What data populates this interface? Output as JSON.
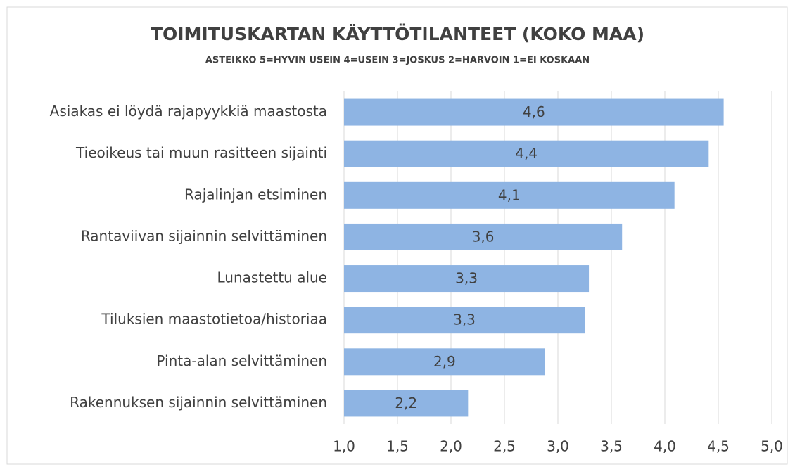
{
  "chart_data": {
    "type": "hbar",
    "title": "TOIMITUSKARTAN KÄYTTÖTILANTEET (KOKO MAA)",
    "subtitle": "ASTEIKKO  5=HYVIN USEIN 4=USEIN 3=JOSKUS 2=HARVOIN 1=EI KOSKAAN",
    "categories": [
      "Asiakas ei löydä rajapyykkiä maastosta",
      "Tieoikeus tai muun rasitteen sijainti",
      "Rajalinjan etsiminen",
      "Rantaviivan sijainnin selvittäminen",
      "Lunastettu alue",
      "Tiluksien maastotietoa/historiaa",
      "Pinta-alan selvittäminen",
      "Rakennuksen sijainnin selvittäminen"
    ],
    "values": [
      4.55,
      4.41,
      4.09,
      3.6,
      3.29,
      3.25,
      2.88,
      2.16
    ],
    "value_labels": [
      "4,6",
      "4,4",
      "4,1",
      "3,6",
      "3,3",
      "3,3",
      "2,9",
      "2,2"
    ],
    "color": "#8eb4e3",
    "xlim": [
      1,
      5
    ],
    "xticks": [
      {
        "value": 1,
        "label": "1,0"
      },
      {
        "value": 1.5,
        "label": "1,5"
      },
      {
        "value": 2,
        "label": "2,0"
      },
      {
        "value": 2.5,
        "label": "2,5"
      },
      {
        "value": 3,
        "label": "3,0"
      },
      {
        "value": 3.5,
        "label": "3,5"
      },
      {
        "value": 4,
        "label": "4,0"
      },
      {
        "value": 4.5,
        "label": "4,5"
      },
      {
        "value": 5,
        "label": "5,0"
      }
    ],
    "grid": true
  }
}
